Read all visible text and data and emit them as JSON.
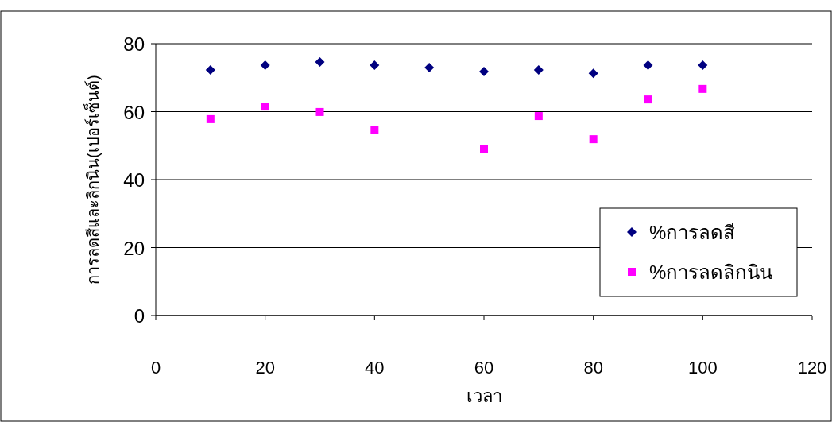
{
  "chart_data": {
    "type": "scatter",
    "xlabel": "เวลา",
    "ylabel": "การลดสีและลิกนิน(เปอร์เซ็นต์)",
    "xlim": [
      0,
      120
    ],
    "xticks": [
      0,
      20,
      40,
      60,
      80,
      100,
      120
    ],
    "ylim": [
      0,
      80
    ],
    "yticks": [
      0,
      20,
      40,
      60,
      80
    ],
    "grid": "y",
    "legend": "bottom right",
    "series": [
      {
        "name": "%การลดสี",
        "color": "#000080",
        "marker": "diamond",
        "x": [
          10,
          20,
          30,
          40,
          50,
          60,
          70,
          80,
          90,
          100
        ],
        "values": [
          72.3,
          73.7,
          74.6,
          73.7,
          73,
          71.8,
          72.3,
          71.3,
          73.7,
          73.7
        ]
      },
      {
        "name": "%การลดลิกนิน",
        "color": "#ff00ff",
        "marker": "square",
        "x": [
          10,
          20,
          30,
          40,
          60,
          70,
          80,
          90,
          100
        ],
        "values": [
          57.8,
          61.5,
          59.9,
          54.7,
          49.1,
          58.7,
          51.9,
          63.6,
          66.7
        ]
      }
    ]
  }
}
